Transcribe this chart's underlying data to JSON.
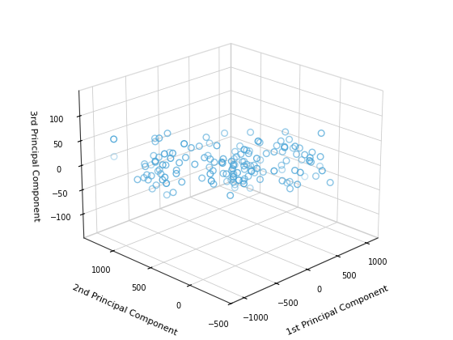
{
  "xlabel": "1st Principal Component",
  "ylabel": "2nd Principal Component",
  "zlabel": "3rd Principal Component",
  "xlim": [
    -1200,
    1200
  ],
  "ylim": [
    -200,
    1400
  ],
  "zlim": [
    -150,
    150
  ],
  "xticks": [
    -1000,
    -500,
    0,
    500,
    1000
  ],
  "yticks": [
    1000,
    500,
    0,
    -500
  ],
  "zticks": [
    -100,
    -50,
    0,
    50,
    100
  ],
  "marker_color": "#4da6d8",
  "marker_size": 30,
  "background_color": "#ffffff",
  "figsize": [
    5.6,
    4.2
  ],
  "dpi": 100,
  "seed": 42,
  "elev": 22,
  "azim": -135
}
